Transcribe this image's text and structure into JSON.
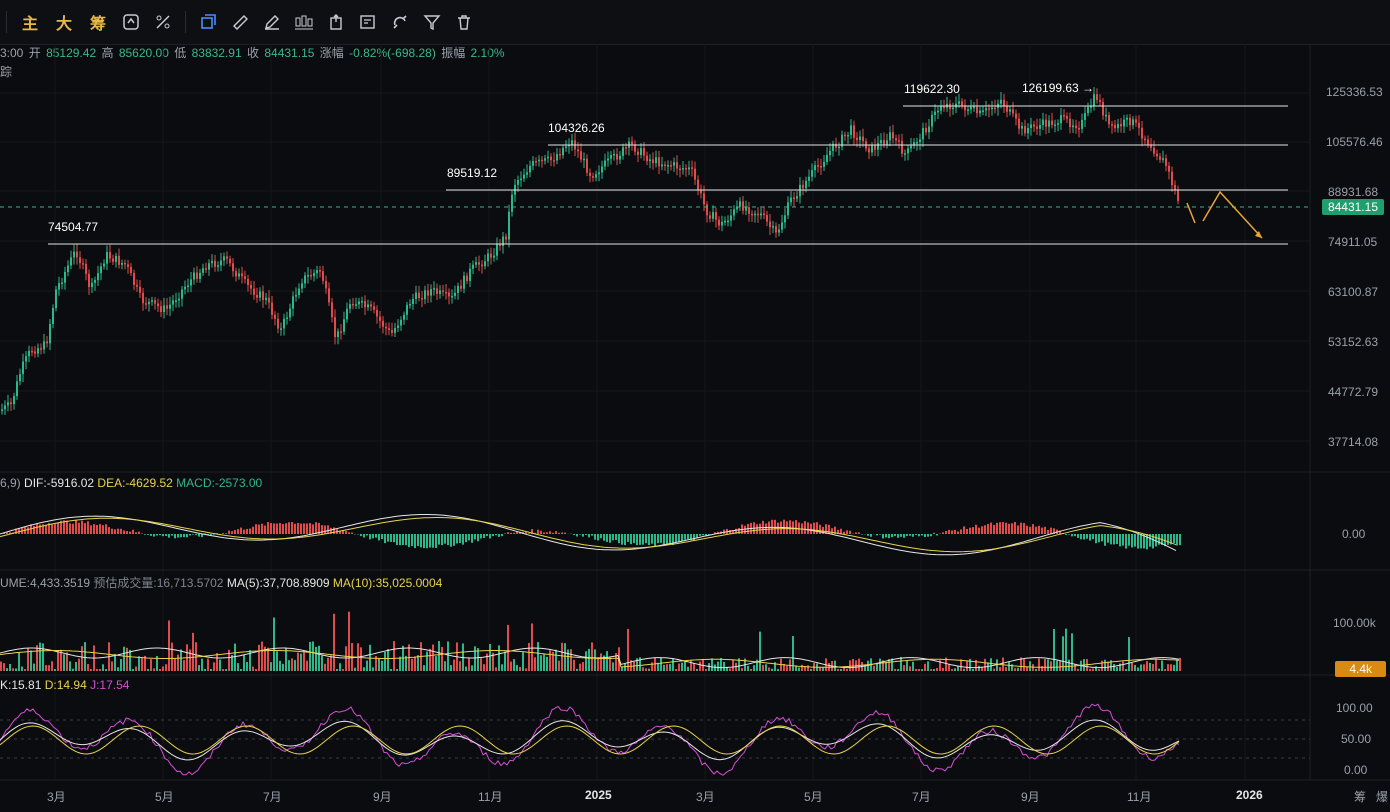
{
  "toolbar": {
    "items": [
      {
        "type": "text",
        "label": "主"
      },
      {
        "type": "text",
        "label": "大"
      },
      {
        "type": "text",
        "label": "筹"
      },
      {
        "type": "icon",
        "icon": "refresh-dollar-icon"
      },
      {
        "type": "icon",
        "icon": "indicator-edit-icon"
      },
      {
        "type": "icon",
        "icon": "copy-layout-icon",
        "active": true
      },
      {
        "type": "icon",
        "icon": "ruler-icon"
      },
      {
        "type": "icon",
        "icon": "pen-draw-icon"
      },
      {
        "type": "icon",
        "icon": "candlestick-icon"
      },
      {
        "type": "icon",
        "icon": "export-icon"
      },
      {
        "type": "icon",
        "icon": "note-edit-icon"
      },
      {
        "type": "icon",
        "icon": "magnet-icon"
      },
      {
        "type": "icon",
        "icon": "filter-icon"
      },
      {
        "type": "icon",
        "icon": "trash-icon"
      }
    ]
  },
  "quote": {
    "time": "3:00",
    "open_label": "开",
    "open": "85129.42",
    "high_label": "高",
    "high": "85620.00",
    "low_label": "低",
    "low": "83832.91",
    "close_label": "收",
    "close": "84431.15",
    "change_label": "涨幅",
    "change": "-0.82%(-698.28)",
    "amp_label": "振幅",
    "amp": "2.10%",
    "line2": "踪"
  },
  "price_axis": [
    "125336.53",
    "105576.46",
    "88931.68",
    "74911.05",
    "63100.87",
    "53152.63",
    "44772.79",
    "37714.08"
  ],
  "current_price": "84431.15",
  "annotations": [
    "74504.77",
    "89519.12",
    "104326.26",
    "119622.30",
    "126199.63"
  ],
  "time_axis": [
    "3月",
    "5月",
    "7月",
    "9月",
    "11月",
    "2025",
    "3月",
    "5月",
    "7月",
    "9月",
    "11月",
    "2026"
  ],
  "time_axis_right": [
    "筹",
    "爆"
  ],
  "macd": {
    "prefix": "6,9)",
    "dif": "DIF:-5916.02",
    "dea": "DEA:-4629.52",
    "macd": "MACD:-2573.00",
    "axis": "0.00"
  },
  "volume": {
    "prefix": "UME:4,433.3519",
    "est": "预估成交量:16,713.5702",
    "ma5": "MA(5):37,708.8909",
    "ma10": "MA(10):35,025.0004",
    "axis": "100.00k",
    "tag": "4.4k"
  },
  "kdj": {
    "k": "K:15.81",
    "d": "D:14.94",
    "j": "J:17.54",
    "axis": [
      "100.00",
      "50.00",
      "0.00"
    ]
  },
  "colors": {
    "up": "#2eb88a",
    "down": "#e04b4b",
    "yellow": "#e8d44a",
    "orange": "#e8a53a",
    "magenta": "#d44fd4",
    "white": "#e6e6e6"
  }
}
